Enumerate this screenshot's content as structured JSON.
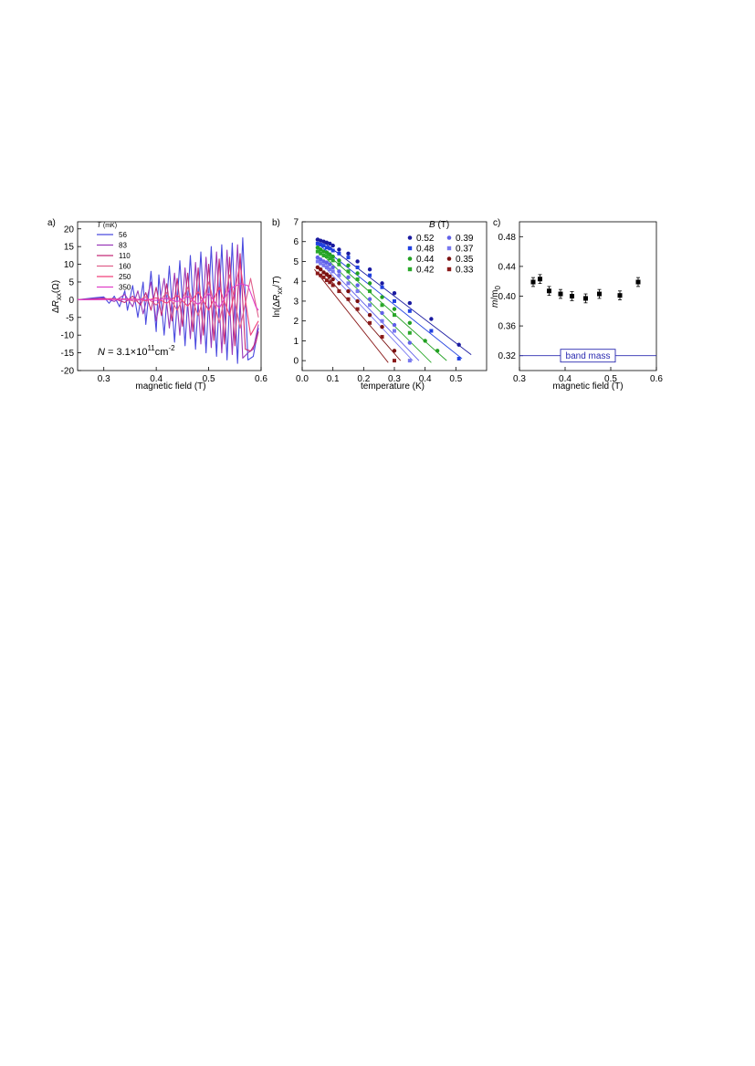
{
  "panel_labels": {
    "a": "a)",
    "b": "b)",
    "c": "c)"
  },
  "chart_data": [
    {
      "type": "line",
      "panel": "a",
      "xlabel": "magnetic field (T)",
      "ylabel": "ΔR_xx(Ω)",
      "ylabel_parts": {
        "delta": "Δ",
        "r": "R",
        "sub": "xx",
        "unit": "(Ω)"
      },
      "xlim": [
        0.25,
        0.6
      ],
      "ylim": [
        -20,
        22
      ],
      "xticks": [
        "0.3",
        "0.4",
        "0.5",
        "0.6"
      ],
      "xtick_values": [
        0.3,
        0.4,
        0.5,
        0.6
      ],
      "yticks": [
        "20",
        "15",
        "10",
        "5",
        "0",
        "-5",
        "-10",
        "-15",
        "-20"
      ],
      "ytick_values": [
        20,
        15,
        10,
        5,
        0,
        -5,
        -10,
        -15,
        -20
      ],
      "legend_title": {
        "var": "T",
        "unit": "(mK)"
      },
      "legend_position": "top-left",
      "annotation": {
        "var": "N",
        "text": " = 3.1×10",
        "exp": "11",
        "unit": "cm",
        "unit_exp": "-2"
      },
      "series": [
        {
          "name": "56",
          "color": "#4a4adf",
          "x": [
            0.25,
            0.28,
            0.3,
            0.31,
            0.32,
            0.33,
            0.34,
            0.345,
            0.355,
            0.365,
            0.375,
            0.38,
            0.39,
            0.4,
            0.405,
            0.415,
            0.425,
            0.435,
            0.445,
            0.455,
            0.465,
            0.475,
            0.485,
            0.495,
            0.505,
            0.515,
            0.525,
            0.535,
            0.545,
            0.555,
            0.565,
            0.575,
            0.585,
            0.595
          ],
          "y": [
            0,
            0.5,
            0.8,
            -1,
            1,
            -2,
            2.5,
            -3,
            4,
            -5,
            5,
            -7,
            8,
            -9,
            7,
            -10,
            9.5,
            -12,
            11,
            -13,
            12.5,
            -14,
            13.5,
            -15,
            15,
            -16,
            15.5,
            -17,
            16,
            -18,
            17.5,
            -17,
            -16,
            -8
          ]
        },
        {
          "name": "83",
          "color": "#9a3ab8",
          "x": [
            0.25,
            0.3,
            0.32,
            0.33,
            0.34,
            0.355,
            0.365,
            0.375,
            0.39,
            0.4,
            0.415,
            0.425,
            0.435,
            0.445,
            0.455,
            0.465,
            0.475,
            0.485,
            0.495,
            0.505,
            0.515,
            0.525,
            0.535,
            0.545,
            0.555,
            0.565,
            0.575,
            0.585,
            0.595
          ],
          "y": [
            0,
            0.5,
            -0.5,
            0.5,
            1.5,
            -2,
            2.5,
            -4,
            5,
            -6,
            6,
            -8,
            7.5,
            -10,
            9,
            -11,
            10.5,
            -12.5,
            12,
            -13.5,
            13.5,
            -15,
            14,
            -15.5,
            15.5,
            -16.5,
            -15,
            -14,
            -7
          ]
        },
        {
          "name": "110",
          "color": "#c42a78",
          "x": [
            0.25,
            0.32,
            0.34,
            0.355,
            0.37,
            0.38,
            0.39,
            0.4,
            0.41,
            0.42,
            0.43,
            0.44,
            0.45,
            0.46,
            0.47,
            0.48,
            0.49,
            0.5,
            0.51,
            0.52,
            0.53,
            0.54,
            0.55,
            0.56,
            0.57,
            0.58,
            0.59,
            0.595
          ],
          "y": [
            0,
            0.3,
            -0.8,
            1,
            -1.5,
            2,
            -3,
            3.5,
            -4.5,
            4.5,
            -6,
            6,
            -7.5,
            7.5,
            -9,
            9,
            -10,
            10,
            -11.5,
            11.5,
            -12.5,
            12,
            -13,
            13,
            -14,
            -14.5,
            -12,
            -9
          ]
        },
        {
          "name": "160",
          "color": "#e0608c",
          "x": [
            0.25,
            0.34,
            0.36,
            0.38,
            0.4,
            0.42,
            0.44,
            0.46,
            0.48,
            0.5,
            0.52,
            0.54,
            0.56,
            0.58,
            0.595
          ],
          "y": [
            0,
            0.2,
            -0.5,
            0.8,
            -1.5,
            2,
            -3,
            3.5,
            -4.5,
            5,
            -6.5,
            7,
            -8,
            6,
            -5
          ]
        },
        {
          "name": "250",
          "color": "#f0407a",
          "x": [
            0.25,
            0.36,
            0.38,
            0.4,
            0.42,
            0.44,
            0.46,
            0.48,
            0.5,
            0.52,
            0.54,
            0.56,
            0.58,
            0.595
          ],
          "y": [
            0,
            0.2,
            -0.3,
            0.5,
            -1,
            1.2,
            -1.8,
            2.2,
            -3,
            3.5,
            -4.5,
            10,
            -10,
            -6
          ]
        },
        {
          "name": "350",
          "color": "#e040c8",
          "x": [
            0.25,
            0.38,
            0.4,
            0.42,
            0.44,
            0.46,
            0.48,
            0.5,
            0.52,
            0.54,
            0.56,
            0.575,
            0.59,
            0.595
          ],
          "y": [
            0,
            0.1,
            -0.2,
            0.4,
            -0.6,
            1,
            -1.4,
            1.8,
            -2.4,
            3,
            4.5,
            4,
            -2,
            -3
          ]
        }
      ]
    },
    {
      "type": "scatter",
      "panel": "b",
      "xlabel": "temperature (K)",
      "ylabel_parts": {
        "pre": "ln(Δ",
        "r": "R",
        "sub": "xx",
        "post": "/",
        "t": "T",
        "close": ")"
      },
      "xlim": [
        0.0,
        0.6
      ],
      "ylim": [
        -0.5,
        7
      ],
      "xticks": [
        "0.0",
        "0.1",
        "0.2",
        "0.3",
        "0.4",
        "0.5"
      ],
      "xtick_values": [
        0.0,
        0.1,
        0.2,
        0.3,
        0.4,
        0.5
      ],
      "yticks": [
        "7",
        "6",
        "5",
        "4",
        "3",
        "2",
        "1",
        "0"
      ],
      "ytick_values": [
        7,
        6,
        5,
        4,
        3,
        2,
        1,
        0
      ],
      "legend_title": {
        "var": "B",
        "unit": " (T)"
      },
      "legend_position": "top-right",
      "series": [
        {
          "name": "0.52",
          "color": "#1a1aa0",
          "marker": "circle",
          "x": [
            0.05,
            0.06,
            0.07,
            0.08,
            0.09,
            0.1,
            0.12,
            0.15,
            0.18,
            0.22,
            0.26,
            0.3,
            0.35,
            0.42,
            0.51
          ],
          "y": [
            6.1,
            6.05,
            6.0,
            5.95,
            5.9,
            5.8,
            5.6,
            5.4,
            5.0,
            4.6,
            3.9,
            3.4,
            2.9,
            2.1,
            0.8
          ],
          "fit": [
            [
              0.05,
              6.2
            ],
            [
              0.55,
              0.3
            ]
          ]
        },
        {
          "name": "0.48",
          "color": "#2040e0",
          "marker": "square",
          "x": [
            0.05,
            0.06,
            0.07,
            0.08,
            0.09,
            0.1,
            0.12,
            0.15,
            0.18,
            0.22,
            0.26,
            0.3,
            0.35,
            0.42,
            0.51
          ],
          "y": [
            5.9,
            5.85,
            5.8,
            5.7,
            5.65,
            5.55,
            5.4,
            5.2,
            4.7,
            4.3,
            3.7,
            3.0,
            2.5,
            1.5,
            0.1
          ],
          "fit": [
            [
              0.05,
              5.9
            ],
            [
              0.52,
              0.1
            ]
          ]
        },
        {
          "name": "0.44",
          "color": "#22a022",
          "marker": "circle",
          "x": [
            0.05,
            0.06,
            0.07,
            0.08,
            0.09,
            0.1,
            0.12,
            0.15,
            0.18,
            0.22,
            0.26,
            0.3,
            0.35,
            0.4,
            0.44
          ],
          "y": [
            5.7,
            5.6,
            5.5,
            5.45,
            5.35,
            5.25,
            5.05,
            4.8,
            4.4,
            3.9,
            3.2,
            2.6,
            1.9,
            1.0,
            0.5
          ],
          "fit": [
            [
              0.05,
              5.8
            ],
            [
              0.47,
              0.0
            ]
          ]
        },
        {
          "name": "0.42",
          "color": "#2aa82a",
          "marker": "square",
          "x": [
            0.05,
            0.06,
            0.07,
            0.08,
            0.09,
            0.1,
            0.12,
            0.15,
            0.18,
            0.22,
            0.26,
            0.3,
            0.35
          ],
          "y": [
            5.5,
            5.4,
            5.3,
            5.25,
            5.15,
            5.05,
            4.85,
            4.5,
            4.1,
            3.5,
            2.8,
            2.3,
            1.4
          ],
          "fit": [
            [
              0.05,
              5.6
            ],
            [
              0.42,
              -0.1
            ]
          ]
        },
        {
          "name": "0.39",
          "color": "#6060e8",
          "marker": "circle",
          "x": [
            0.05,
            0.06,
            0.07,
            0.08,
            0.09,
            0.1,
            0.12,
            0.15,
            0.18,
            0.22,
            0.26,
            0.3,
            0.35
          ],
          "y": [
            5.2,
            5.1,
            5.0,
            4.95,
            4.85,
            4.7,
            4.5,
            4.2,
            3.8,
            3.1,
            2.4,
            1.8,
            0.9
          ],
          "fit": [
            [
              0.05,
              5.3
            ],
            [
              0.38,
              0.0
            ]
          ]
        },
        {
          "name": "0.37",
          "color": "#7878f0",
          "marker": "square",
          "x": [
            0.05,
            0.06,
            0.07,
            0.08,
            0.09,
            0.1,
            0.12,
            0.15,
            0.18,
            0.22,
            0.26,
            0.3,
            0.35
          ],
          "y": [
            5.0,
            4.9,
            4.8,
            4.7,
            4.6,
            4.5,
            4.3,
            3.9,
            3.5,
            2.8,
            2.0,
            1.5,
            0.0
          ],
          "fit": [
            [
              0.05,
              5.1
            ],
            [
              0.36,
              0.0
            ]
          ]
        },
        {
          "name": "0.35",
          "color": "#7a1010",
          "marker": "circle",
          "x": [
            0.05,
            0.06,
            0.07,
            0.08,
            0.09,
            0.1,
            0.12,
            0.15,
            0.18,
            0.22,
            0.26,
            0.3
          ],
          "y": [
            4.7,
            4.6,
            4.45,
            4.35,
            4.25,
            4.1,
            3.9,
            3.5,
            3.0,
            2.3,
            1.7,
            0.5
          ],
          "fit": [
            [
              0.05,
              4.8
            ],
            [
              0.32,
              0.0
            ]
          ]
        },
        {
          "name": "0.33",
          "color": "#8a1a1a",
          "marker": "square",
          "x": [
            0.05,
            0.06,
            0.07,
            0.08,
            0.09,
            0.1,
            0.12,
            0.15,
            0.18,
            0.22,
            0.26,
            0.3
          ],
          "y": [
            4.4,
            4.3,
            4.2,
            4.05,
            3.95,
            3.8,
            3.5,
            3.1,
            2.6,
            1.9,
            1.2,
            0.0
          ],
          "fit": [
            [
              0.04,
              4.6
            ],
            [
              0.28,
              -0.1
            ]
          ]
        }
      ]
    },
    {
      "type": "scatter",
      "panel": "c",
      "xlabel": "magnetic field (T)",
      "ylabel_parts": {
        "m": "m",
        "slash": "/",
        "m0": "m",
        "sub": "0"
      },
      "xlim": [
        0.3,
        0.6
      ],
      "ylim": [
        0.3,
        0.5
      ],
      "xticks": [
        "0.3",
        "0.4",
        "0.5",
        "0.6"
      ],
      "xtick_values": [
        0.3,
        0.4,
        0.5,
        0.6
      ],
      "yticks": [
        "0.48",
        "0.44",
        "0.40",
        "0.36",
        "0.32"
      ],
      "ytick_values": [
        0.48,
        0.44,
        0.4,
        0.36,
        0.32
      ],
      "reference_line": {
        "y": 0.32,
        "label": "band mass",
        "color": "#2a2ab0"
      },
      "series": [
        {
          "name": "",
          "color": "#000000",
          "marker": "square",
          "x": [
            0.33,
            0.345,
            0.365,
            0.39,
            0.415,
            0.445,
            0.475,
            0.52,
            0.56
          ],
          "y": [
            0.419,
            0.423,
            0.407,
            0.403,
            0.4,
            0.397,
            0.403,
            0.401,
            0.419
          ],
          "err": [
            0.006,
            0.006,
            0.006,
            0.006,
            0.006,
            0.006,
            0.006,
            0.006,
            0.006
          ]
        }
      ]
    }
  ]
}
